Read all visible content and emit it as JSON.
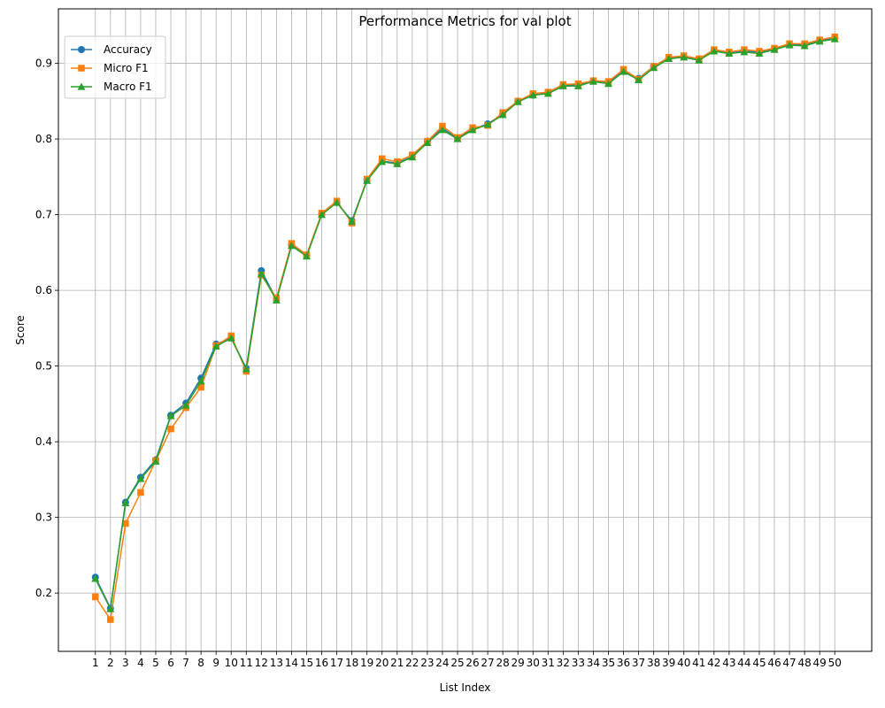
{
  "chart_data": {
    "type": "line",
    "title": "Performance Metrics for val plot",
    "xlabel": "List Index",
    "ylabel": "Score",
    "x": [
      1,
      2,
      3,
      4,
      5,
      6,
      7,
      8,
      9,
      10,
      11,
      12,
      13,
      14,
      15,
      16,
      17,
      18,
      19,
      20,
      21,
      22,
      23,
      24,
      25,
      26,
      27,
      28,
      29,
      30,
      31,
      32,
      33,
      34,
      35,
      36,
      37,
      38,
      39,
      40,
      41,
      42,
      43,
      44,
      45,
      46,
      47,
      48,
      49,
      50
    ],
    "xlim": [
      -1.45,
      52.45
    ],
    "ylim": [
      0.123,
      0.972
    ],
    "yticks": [
      0.2,
      0.3,
      0.4,
      0.5,
      0.6,
      0.7,
      0.8,
      0.9
    ],
    "ytick_labels": [
      "0.2",
      "0.3",
      "0.4",
      "0.5",
      "0.6",
      "0.7",
      "0.8",
      "0.9"
    ],
    "grid": true,
    "legend_position": "top-left",
    "series": [
      {
        "name": "Accuracy",
        "color": "#1f77b4",
        "marker": "circle",
        "values": [
          0.221,
          0.18,
          0.32,
          0.353,
          0.376,
          0.435,
          0.451,
          0.484,
          0.529,
          0.537,
          0.497,
          0.626,
          0.588,
          0.66,
          0.646,
          0.701,
          0.716,
          0.692,
          0.746,
          0.771,
          0.768,
          0.777,
          0.797,
          0.814,
          0.801,
          0.813,
          0.82,
          0.833,
          0.85,
          0.858,
          0.861,
          0.871,
          0.872,
          0.877,
          0.875,
          0.89,
          0.88,
          0.896,
          0.907,
          0.909,
          0.906,
          0.917,
          0.914,
          0.916,
          0.915,
          0.919,
          0.925,
          0.925,
          0.93,
          0.933
        ]
      },
      {
        "name": "Micro F1",
        "color": "#ff7f0e",
        "marker": "square",
        "values": [
          0.195,
          0.165,
          0.292,
          0.333,
          0.375,
          0.417,
          0.445,
          0.472,
          0.527,
          0.54,
          0.493,
          0.62,
          0.59,
          0.662,
          0.647,
          0.702,
          0.718,
          0.689,
          0.747,
          0.774,
          0.77,
          0.779,
          0.797,
          0.817,
          0.802,
          0.815,
          0.818,
          0.835,
          0.85,
          0.86,
          0.862,
          0.872,
          0.873,
          0.877,
          0.876,
          0.892,
          0.879,
          0.896,
          0.908,
          0.91,
          0.906,
          0.918,
          0.915,
          0.918,
          0.916,
          0.92,
          0.926,
          0.926,
          0.931,
          0.935
        ]
      },
      {
        "name": "Macro F1",
        "color": "#2ca02c",
        "marker": "triangle",
        "values": [
          0.219,
          0.179,
          0.319,
          0.351,
          0.374,
          0.434,
          0.448,
          0.48,
          0.526,
          0.537,
          0.496,
          0.622,
          0.587,
          0.659,
          0.645,
          0.7,
          0.716,
          0.691,
          0.745,
          0.77,
          0.767,
          0.776,
          0.795,
          0.812,
          0.8,
          0.812,
          0.819,
          0.832,
          0.849,
          0.858,
          0.86,
          0.87,
          0.87,
          0.876,
          0.873,
          0.889,
          0.878,
          0.894,
          0.906,
          0.908,
          0.904,
          0.916,
          0.913,
          0.915,
          0.913,
          0.918,
          0.924,
          0.923,
          0.929,
          0.932
        ]
      }
    ]
  }
}
